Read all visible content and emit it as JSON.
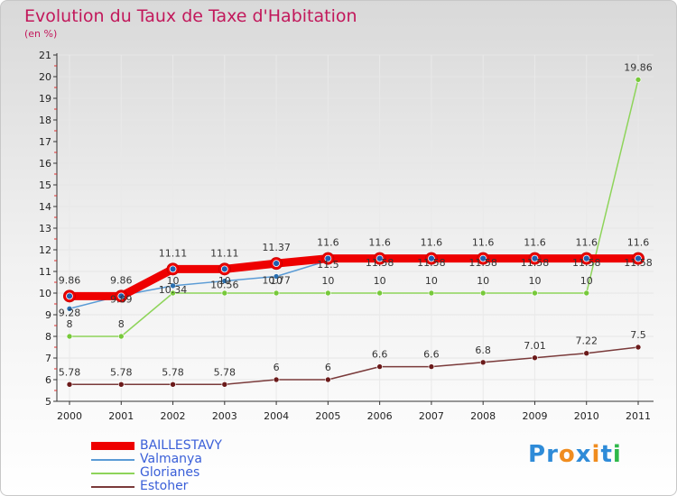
{
  "title": "Evolution du Taux de Taxe d'Habitation",
  "subtitle": "(en %)",
  "brand": {
    "letters": [
      "P",
      "r",
      "o",
      "x",
      "i",
      "t",
      "i"
    ],
    "colors": [
      "#2e8bd8",
      "#2e8bd8",
      "#f08c1e",
      "#2e8bd8",
      "#f08c1e",
      "#2e8bd8",
      "#2eb84a"
    ]
  },
  "chart_data": {
    "type": "line",
    "title": "Evolution du Taux de Taxe d'Habitation",
    "ylabel": "(en %)",
    "xlabel": "",
    "ylim": [
      5,
      21
    ],
    "yticks": [
      "5",
      "6",
      "7",
      "8",
      "9",
      "10",
      "11",
      "12",
      "13",
      "14",
      "15",
      "16",
      "17",
      "18",
      "19",
      "20",
      "21"
    ],
    "categories": [
      "2000",
      "2001",
      "2002",
      "2003",
      "2004",
      "2005",
      "2006",
      "2007",
      "2008",
      "2009",
      "2010",
      "2011"
    ],
    "series": [
      {
        "name": "BAILLESTAVY",
        "color": "#ee0000",
        "dot": "#1e5fb0",
        "values": [
          9.86,
          9.86,
          11.11,
          11.11,
          11.37,
          11.6,
          11.6,
          11.6,
          11.6,
          11.6,
          11.6,
          11.6
        ],
        "labels": [
          "9.86",
          "9.86",
          "11.11",
          "11.11",
          "11.37",
          "11.6",
          "11.6",
          "11.6",
          "11.6",
          "11.6",
          "11.6",
          "11.6"
        ]
      },
      {
        "name": "Valmanya",
        "color": "#5a9bd5",
        "dot": "#2a6fb0",
        "values": [
          9.28,
          9.89,
          10.34,
          10.56,
          10.77,
          11.5,
          11.58,
          11.58,
          11.58,
          11.58,
          11.58,
          11.58
        ],
        "labels": [
          "9.28",
          "9.89",
          "10.34",
          "10.56",
          "10.77",
          "11.5",
          "11.58",
          "11.58",
          "11.58",
          "11.58",
          "11.58",
          "11.58"
        ]
      },
      {
        "name": "Glorianes",
        "color": "#8ed45a",
        "dot": "#77c93a",
        "values": [
          8,
          8,
          10,
          10,
          10,
          10,
          10,
          10,
          10,
          10,
          10,
          19.86
        ],
        "labels": [
          "8",
          "8",
          "10",
          "10",
          "10",
          "10",
          "10",
          "10",
          "10",
          "10",
          "10",
          "19.86"
        ]
      },
      {
        "name": "Estoher",
        "color": "#7a3a3a",
        "dot": "#6b1a1a",
        "values": [
          5.78,
          5.78,
          5.78,
          5.78,
          6,
          6,
          6.6,
          6.6,
          6.8,
          7.01,
          7.22,
          7.5
        ],
        "labels": [
          "5.78",
          "5.78",
          "5.78",
          "5.78",
          "6",
          "6",
          "6.6",
          "6.6",
          "6.8",
          "7.01",
          "7.22",
          "7.5"
        ]
      }
    ],
    "legend_position": "bottom-left"
  }
}
